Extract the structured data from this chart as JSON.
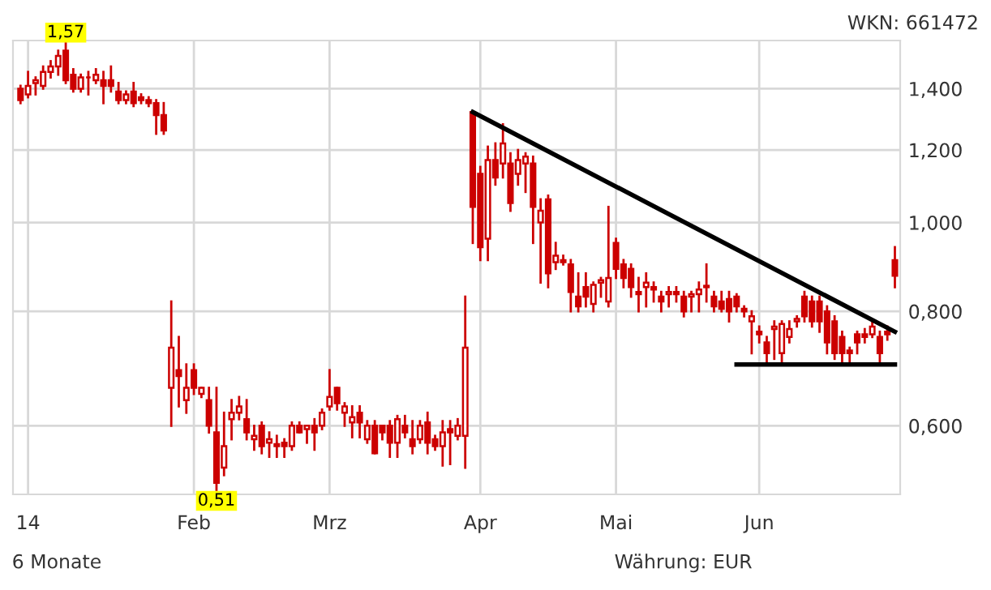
{
  "chart_data": {
    "type": "candlestick",
    "categories": [
      null,
      "14",
      null,
      null,
      null,
      null,
      null,
      null,
      null,
      null,
      null,
      null,
      null,
      null,
      null,
      null,
      null,
      null,
      null,
      null,
      null,
      null,
      null,
      "Feb",
      null,
      null,
      null,
      null,
      null,
      null,
      null,
      null,
      null,
      null,
      null,
      null,
      null,
      null,
      null,
      null,
      null,
      "Mrz",
      null,
      null,
      null,
      null,
      null,
      null,
      null,
      null,
      null,
      null,
      null,
      null,
      null,
      null,
      null,
      null,
      null,
      null,
      null,
      "Apr",
      null,
      null,
      null,
      null,
      null,
      null,
      null,
      null,
      null,
      null,
      null,
      null,
      null,
      null,
      null,
      null,
      null,
      "Mai",
      null,
      null,
      null,
      null,
      null,
      null,
      null,
      null,
      null,
      null,
      null,
      null,
      null,
      null,
      null,
      null,
      null,
      null,
      "Jun",
      null,
      null,
      null,
      null,
      null,
      null,
      null,
      null,
      null,
      null,
      null,
      null,
      null,
      null,
      null,
      null,
      null,
      null
    ],
    "ohlc": [
      [
        1.4,
        1.41,
        1.35,
        1.36
      ],
      [
        1.38,
        1.46,
        1.37,
        1.41
      ],
      [
        1.42,
        1.44,
        1.38,
        1.43
      ],
      [
        1.41,
        1.48,
        1.4,
        1.46
      ],
      [
        1.46,
        1.5,
        1.44,
        1.48
      ],
      [
        1.48,
        1.54,
        1.45,
        1.52
      ],
      [
        1.54,
        1.57,
        1.42,
        1.43
      ],
      [
        1.45,
        1.47,
        1.39,
        1.4
      ],
      [
        1.4,
        1.45,
        1.39,
        1.44
      ],
      [
        1.44,
        1.46,
        1.38,
        1.44
      ],
      [
        1.43,
        1.47,
        1.42,
        1.45
      ],
      [
        1.43,
        1.46,
        1.35,
        1.41
      ],
      [
        1.43,
        1.48,
        1.39,
        1.41
      ],
      [
        1.39,
        1.42,
        1.35,
        1.36
      ],
      [
        1.36,
        1.39,
        1.35,
        1.38
      ],
      [
        1.39,
        1.42,
        1.34,
        1.35
      ],
      [
        1.37,
        1.38,
        1.35,
        1.36
      ],
      [
        1.36,
        1.37,
        1.34,
        1.35
      ],
      [
        1.35,
        1.36,
        1.25,
        1.31
      ],
      [
        1.31,
        1.35,
        1.25,
        1.26
      ],
      [
        0.66,
        0.82,
        0.6,
        0.73
      ],
      [
        0.69,
        0.75,
        0.63,
        0.68
      ],
      [
        0.64,
        0.7,
        0.62,
        0.66
      ],
      [
        0.69,
        0.7,
        0.65,
        0.66
      ],
      [
        0.65,
        0.66,
        0.645,
        0.66
      ],
      [
        0.64,
        0.66,
        0.59,
        0.6
      ],
      [
        0.59,
        0.66,
        0.51,
        0.52
      ],
      [
        0.54,
        0.62,
        0.53,
        0.57
      ],
      [
        0.61,
        0.64,
        0.58,
        0.62
      ],
      [
        0.62,
        0.645,
        0.61,
        0.63
      ],
      [
        0.61,
        0.64,
        0.58,
        0.59
      ],
      [
        0.58,
        0.6,
        0.565,
        0.585
      ],
      [
        0.6,
        0.605,
        0.56,
        0.57
      ],
      [
        0.575,
        0.59,
        0.555,
        0.58
      ],
      [
        0.57,
        0.585,
        0.555,
        0.573
      ],
      [
        0.575,
        0.58,
        0.555,
        0.57
      ],
      [
        0.57,
        0.605,
        0.565,
        0.6
      ],
      [
        0.6,
        0.605,
        0.59,
        0.59
      ],
      [
        0.595,
        0.6,
        0.575,
        0.6
      ],
      [
        0.6,
        0.61,
        0.565,
        0.59
      ],
      [
        0.6,
        0.625,
        0.595,
        0.62
      ],
      [
        0.63,
        0.69,
        0.625,
        0.645
      ],
      [
        0.66,
        0.66,
        0.625,
        0.635
      ],
      [
        0.62,
        0.635,
        0.6,
        0.63
      ],
      [
        0.605,
        0.63,
        0.583,
        0.613
      ],
      [
        0.62,
        0.63,
        0.583,
        0.605
      ],
      [
        0.58,
        0.607,
        0.575,
        0.6
      ],
      [
        0.6,
        0.607,
        0.56,
        0.56
      ],
      [
        0.6,
        0.6,
        0.58,
        0.59
      ],
      [
        0.6,
        0.607,
        0.555,
        0.575
      ],
      [
        0.575,
        0.615,
        0.555,
        0.61
      ],
      [
        0.6,
        0.615,
        0.583,
        0.59
      ],
      [
        0.58,
        0.607,
        0.56,
        0.57
      ],
      [
        0.58,
        0.607,
        0.575,
        0.6
      ],
      [
        0.605,
        0.62,
        0.56,
        0.575
      ],
      [
        0.58,
        0.585,
        0.565,
        0.57
      ],
      [
        0.57,
        0.607,
        0.543,
        0.59
      ],
      [
        0.595,
        0.607,
        0.545,
        0.59
      ],
      [
        0.585,
        0.61,
        0.58,
        0.6
      ],
      [
        0.585,
        0.83,
        0.54,
        0.73
      ],
      [
        1.32,
        1.32,
        0.95,
        1.04
      ],
      [
        1.13,
        1.15,
        0.91,
        0.94
      ],
      [
        0.96,
        1.21,
        0.91,
        1.17
      ],
      [
        1.17,
        1.22,
        1.1,
        1.12
      ],
      [
        1.16,
        1.28,
        1.12,
        1.22
      ],
      [
        1.16,
        1.19,
        1.03,
        1.05
      ],
      [
        1.13,
        1.2,
        1.1,
        1.17
      ],
      [
        1.16,
        1.19,
        1.08,
        1.18
      ],
      [
        1.16,
        1.18,
        0.95,
        1.04
      ],
      [
        1.0,
        1.06,
        0.86,
        1.03
      ],
      [
        1.06,
        1.07,
        0.85,
        0.88
      ],
      [
        0.905,
        0.95,
        0.89,
        0.92
      ],
      [
        0.91,
        0.92,
        0.9,
        0.905
      ],
      [
        0.9,
        0.91,
        0.8,
        0.84
      ],
      [
        0.83,
        0.88,
        0.8,
        0.81
      ],
      [
        0.85,
        0.88,
        0.81,
        0.83
      ],
      [
        0.815,
        0.86,
        0.8,
        0.855
      ],
      [
        0.86,
        0.87,
        0.83,
        0.865
      ],
      [
        0.82,
        1.04,
        0.81,
        0.87
      ],
      [
        0.95,
        0.96,
        0.87,
        0.89
      ],
      [
        0.9,
        0.91,
        0.85,
        0.87
      ],
      [
        0.89,
        0.9,
        0.83,
        0.85
      ],
      [
        0.84,
        0.87,
        0.8,
        0.835
      ],
      [
        0.85,
        0.88,
        0.81,
        0.86
      ],
      [
        0.85,
        0.86,
        0.82,
        0.845
      ],
      [
        0.83,
        0.84,
        0.8,
        0.82
      ],
      [
        0.835,
        0.85,
        0.81,
        0.84
      ],
      [
        0.84,
        0.85,
        0.82,
        0.835
      ],
      [
        0.83,
        0.84,
        0.79,
        0.8
      ],
      [
        0.83,
        0.84,
        0.8,
        0.835
      ],
      [
        0.835,
        0.86,
        0.8,
        0.845
      ],
      [
        0.85,
        0.9,
        0.82,
        0.853
      ],
      [
        0.83,
        0.84,
        0.8,
        0.81
      ],
      [
        0.82,
        0.84,
        0.8,
        0.805
      ],
      [
        0.825,
        0.84,
        0.78,
        0.8
      ],
      [
        0.83,
        0.835,
        0.8,
        0.81
      ],
      [
        0.805,
        0.81,
        0.79,
        0.8
      ],
      [
        0.78,
        0.8,
        0.72,
        0.79
      ],
      [
        0.76,
        0.77,
        0.74,
        0.755
      ],
      [
        0.74,
        0.75,
        0.7,
        0.72
      ],
      [
        0.765,
        0.78,
        0.71,
        0.77
      ],
      [
        0.72,
        0.78,
        0.7,
        0.775
      ],
      [
        0.75,
        0.78,
        0.74,
        0.765
      ],
      [
        0.78,
        0.79,
        0.77,
        0.785
      ],
      [
        0.83,
        0.84,
        0.78,
        0.79
      ],
      [
        0.82,
        0.83,
        0.77,
        0.78
      ],
      [
        0.82,
        0.83,
        0.76,
        0.78
      ],
      [
        0.8,
        0.81,
        0.72,
        0.74
      ],
      [
        0.78,
        0.79,
        0.71,
        0.72
      ],
      [
        0.75,
        0.76,
        0.705,
        0.72
      ],
      [
        0.725,
        0.73,
        0.705,
        0.72
      ],
      [
        0.755,
        0.76,
        0.72,
        0.74
      ],
      [
        0.755,
        0.765,
        0.74,
        0.75
      ],
      [
        0.755,
        0.78,
        0.75,
        0.77
      ],
      [
        0.75,
        0.76,
        0.7,
        0.72
      ],
      [
        0.76,
        0.77,
        0.745,
        0.755
      ],
      [
        0.91,
        0.94,
        0.85,
        0.875
      ]
    ],
    "color": "#cc0000",
    "series": [
      {
        "type": "line",
        "color": "#000000",
        "values": [
          null,
          null,
          null,
          null,
          null,
          null,
          null,
          null,
          null,
          null,
          null,
          null,
          null,
          null,
          null,
          null,
          null,
          null,
          null,
          null,
          null,
          null,
          null,
          null,
          null,
          null,
          null,
          null,
          null,
          null,
          null,
          null,
          null,
          null,
          null,
          null,
          null,
          null,
          null,
          null,
          null,
          null,
          null,
          null,
          null,
          null,
          null,
          null,
          null,
          null,
          null,
          null,
          null,
          null,
          null,
          null,
          null,
          null,
          null,
          null,
          1.32,
          null,
          null,
          null,
          null,
          null,
          null,
          null,
          null,
          null,
          null,
          null,
          null,
          null,
          null,
          null,
          null,
          null,
          null,
          null,
          null,
          null,
          null,
          null,
          null,
          null,
          null,
          null,
          null,
          null,
          null,
          null,
          null,
          null,
          null,
          null,
          null,
          null,
          null,
          null,
          null,
          null,
          null,
          null,
          null,
          null,
          null,
          null,
          null,
          null,
          null,
          null,
          null,
          null,
          null,
          null,
          0.76
        ]
      },
      {
        "type": "line",
        "color": "#000000",
        "values": [
          null,
          null,
          null,
          null,
          null,
          null,
          null,
          null,
          null,
          null,
          null,
          null,
          null,
          null,
          null,
          null,
          null,
          null,
          null,
          null,
          null,
          null,
          null,
          null,
          null,
          null,
          null,
          null,
          null,
          null,
          null,
          null,
          null,
          null,
          null,
          null,
          null,
          null,
          null,
          null,
          null,
          null,
          null,
          null,
          null,
          null,
          null,
          null,
          null,
          null,
          null,
          null,
          null,
          null,
          null,
          null,
          null,
          null,
          null,
          null,
          null,
          null,
          null,
          null,
          null,
          null,
          null,
          null,
          null,
          null,
          null,
          null,
          null,
          null,
          null,
          null,
          null,
          null,
          null,
          null,
          null,
          null,
          null,
          null,
          null,
          null,
          null,
          null,
          null,
          null,
          null,
          null,
          null,
          null,
          null,
          0.7,
          null,
          null,
          null,
          null,
          null,
          null,
          null,
          null,
          null,
          null,
          null,
          null,
          null,
          null,
          null,
          null,
          null,
          null,
          null,
          null,
          0.7
        ]
      }
    ],
    "log": true,
    "ylim": [
      0.505,
      1.58
    ],
    "yticks": [
      {
        "value": 0.6,
        "label": "0,600"
      },
      {
        "value": 0.8,
        "label": "0,800"
      },
      {
        "value": 1.0,
        "label": "1,000"
      },
      {
        "value": 1.2,
        "label": "1,200"
      },
      {
        "value": 1.4,
        "label": "1,400"
      }
    ],
    "grid": true,
    "annotations": [
      "WKN: 661472",
      "6 Monate",
      "Währung: EUR",
      {
        "text": "1,57",
        "y": 1.57
      },
      {
        "text": "0,51",
        "y": 0.51
      }
    ]
  }
}
